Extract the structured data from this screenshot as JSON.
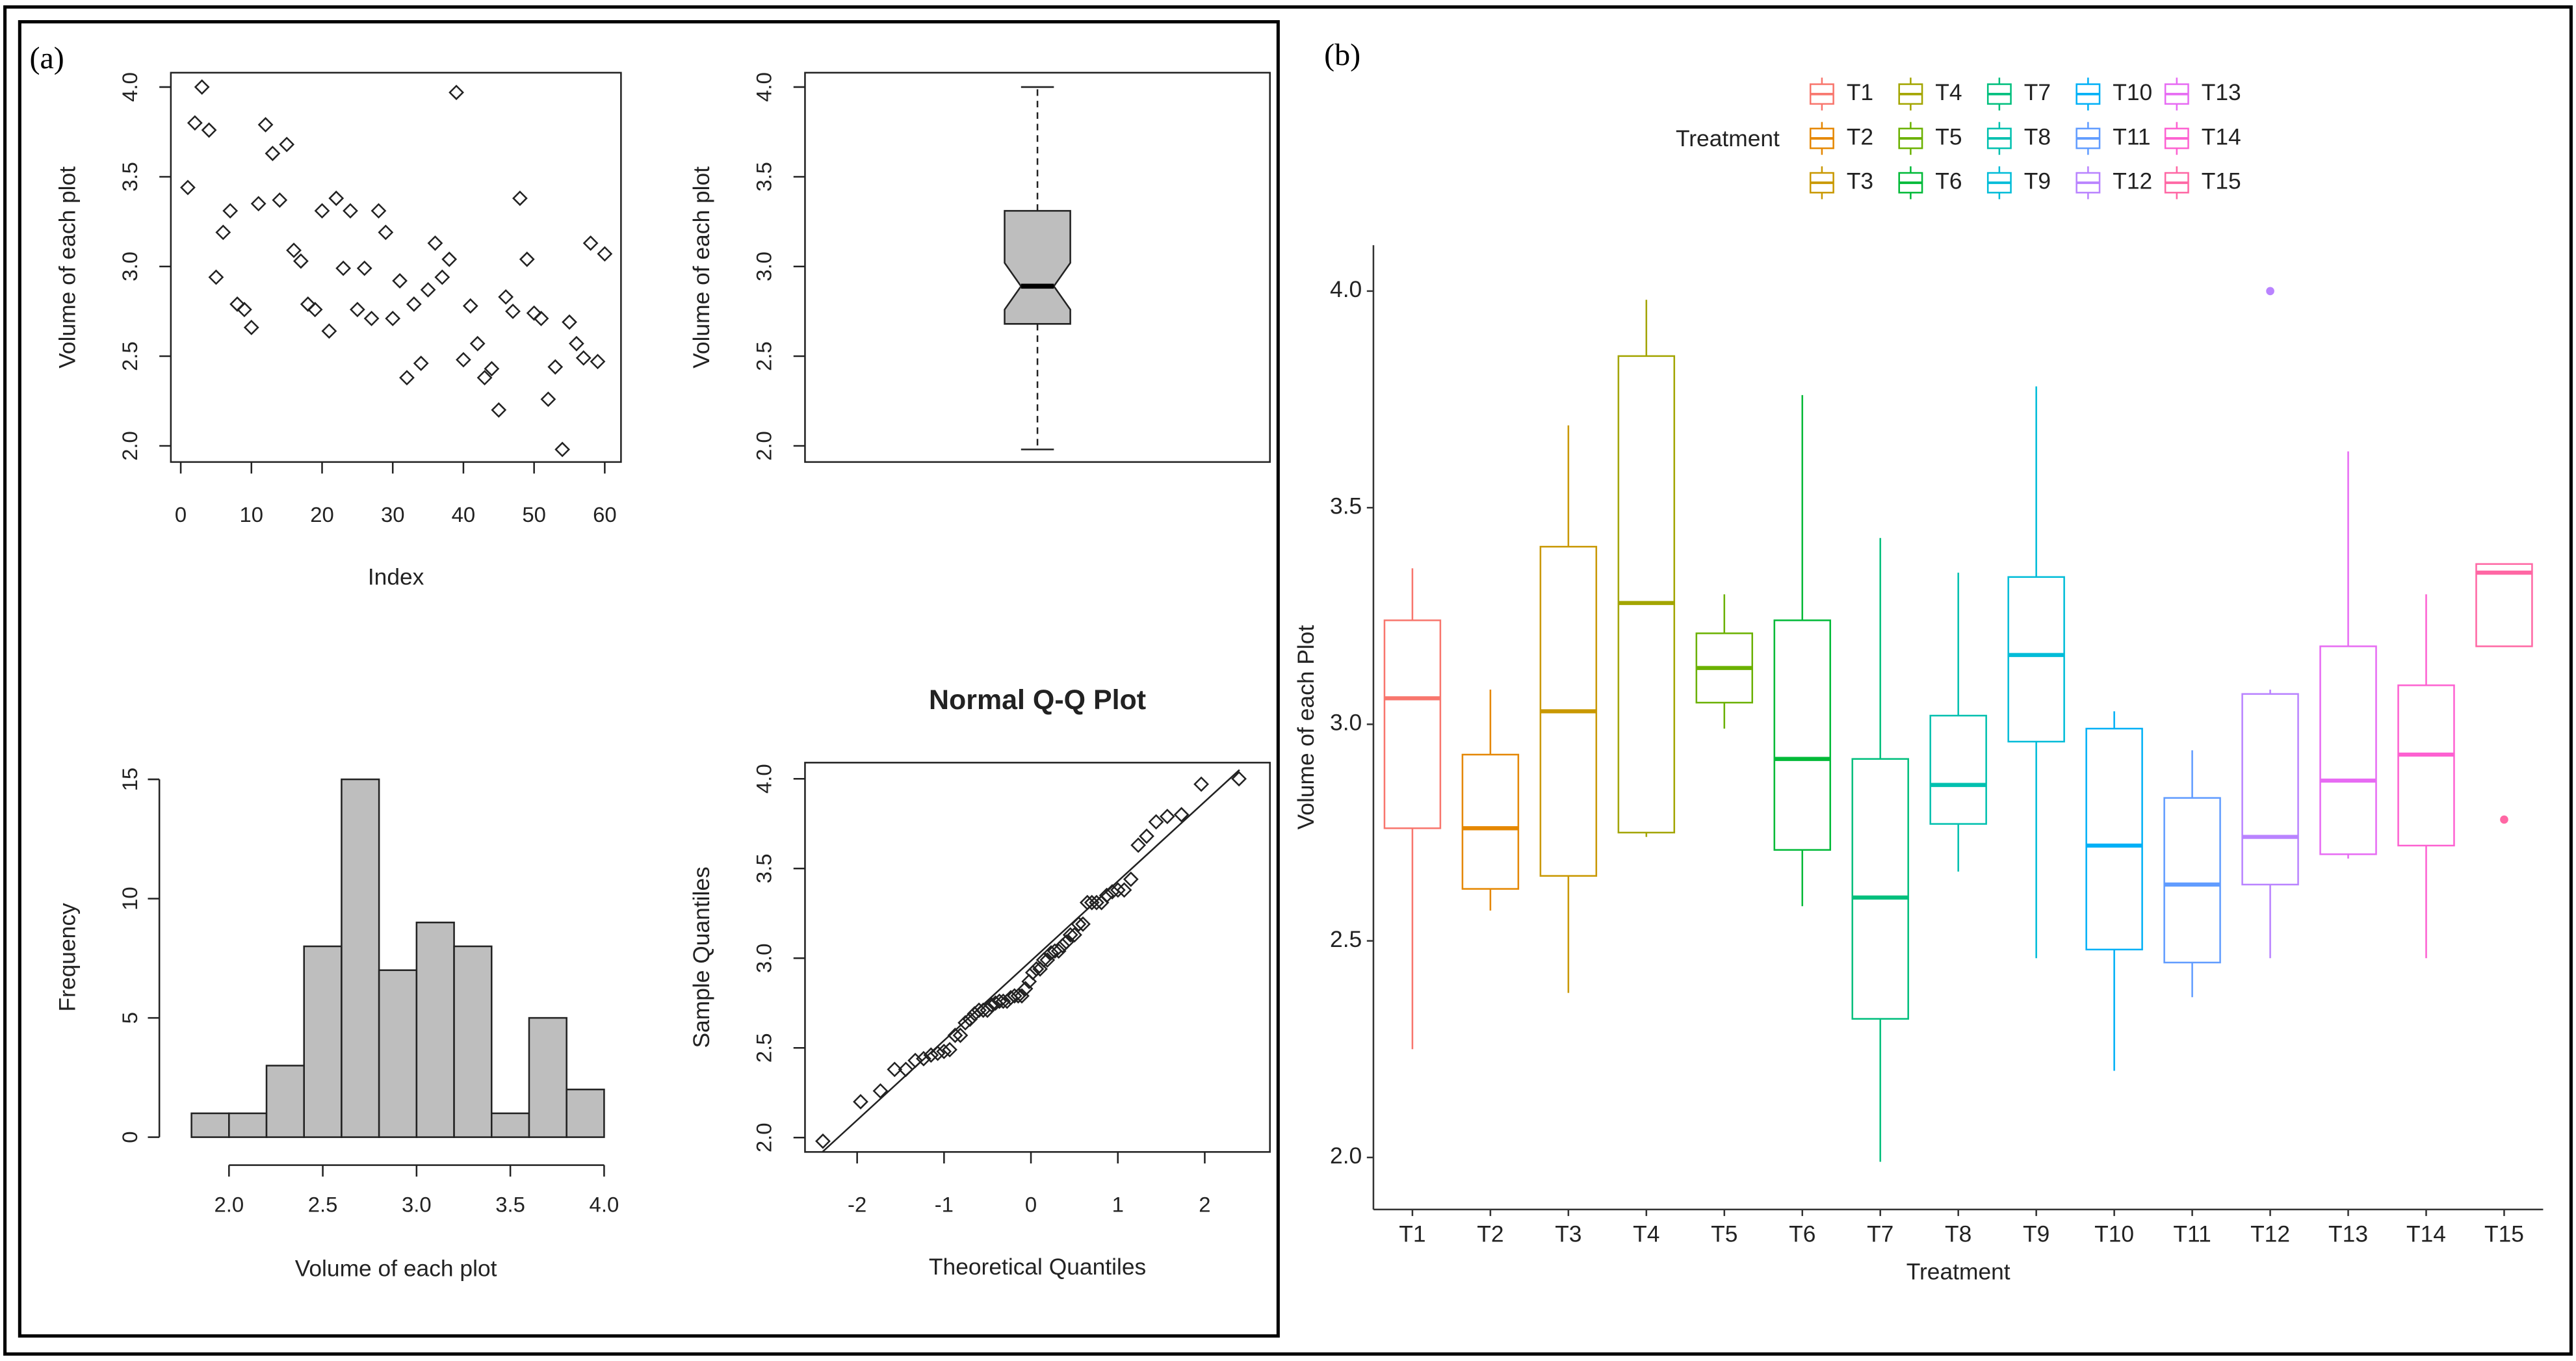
{
  "chart_data": [
    {
      "type": "scatter",
      "panel": "(a)",
      "x_label": "Index",
      "y_label": "Volume of each plot",
      "x": [
        1,
        2,
        3,
        4,
        5,
        6,
        7,
        8,
        9,
        10,
        11,
        12,
        13,
        14,
        15,
        16,
        17,
        18,
        19,
        20,
        21,
        22,
        23,
        24,
        25,
        26,
        27,
        28,
        29,
        30,
        31,
        32,
        33,
        34,
        35,
        36,
        37,
        38,
        39,
        40,
        41,
        42,
        43,
        44,
        45,
        46,
        47,
        48,
        49,
        50,
        51,
        52,
        53,
        54,
        55,
        56,
        57,
        58,
        59,
        60
      ],
      "y": [
        3.44,
        3.8,
        4.0,
        3.76,
        2.94,
        3.19,
        3.31,
        2.79,
        2.76,
        2.66,
        3.35,
        3.79,
        3.63,
        3.37,
        3.68,
        3.09,
        3.03,
        2.79,
        2.76,
        3.31,
        2.64,
        3.38,
        2.99,
        3.31,
        2.76,
        2.99,
        2.71,
        3.31,
        3.19,
        2.71,
        2.92,
        2.38,
        2.79,
        2.46,
        2.87,
        3.13,
        2.94,
        3.04,
        3.97,
        2.48,
        2.78,
        2.57,
        2.38,
        2.43,
        2.2,
        2.83,
        2.75,
        3.38,
        3.04,
        2.74,
        2.71,
        2.26,
        2.44,
        1.98,
        2.69,
        2.57,
        2.49,
        3.13,
        2.47,
        3.07
      ],
      "xlim": [
        -1.4,
        62.3
      ],
      "ylim": [
        1.91,
        4.08
      ],
      "xticks": [
        0,
        10,
        20,
        30,
        40,
        50,
        60
      ],
      "yticks": [
        {
          "value": 2,
          "label": "2.0"
        },
        {
          "value": 2.5,
          "label": "2.5"
        },
        {
          "value": 3,
          "label": "3.0"
        },
        {
          "value": 3.5,
          "label": "3.5"
        },
        {
          "value": 4,
          "label": "4.0"
        }
      ],
      "color": "#222222"
    },
    {
      "type": "box",
      "y_label": "Volume of each plot",
      "stats": {
        "low": 1.98,
        "q1": 2.68,
        "median": 2.89,
        "q3": 3.31,
        "high": 4.0,
        "notch": [
          2.76,
          3.02
        ]
      },
      "ylim": [
        1.91,
        4.08
      ],
      "yticks": [
        {
          "value": 2,
          "label": "2.0"
        },
        {
          "value": 2.5,
          "label": "2.5"
        },
        {
          "value": 3,
          "label": "3.0"
        },
        {
          "value": 3.5,
          "label": "3.5"
        },
        {
          "value": 4,
          "label": "4.0"
        }
      ],
      "color": "#bebebe"
    },
    {
      "type": "histogram",
      "x_label": "Volume of each plot",
      "y_label": "Frequency",
      "bins": [
        1.8,
        2.0,
        2.2,
        2.4,
        2.6,
        2.8,
        3.0,
        3.2,
        3.4,
        3.6,
        3.8,
        4.0
      ],
      "values": [
        1,
        1,
        3,
        8,
        15,
        7,
        9,
        8,
        1,
        5,
        2
      ],
      "xlim": [
        1.69,
        4.09
      ],
      "ylim": [
        -0.62,
        15.7
      ],
      "xticks": [
        {
          "value": 2,
          "label": "2.0"
        },
        {
          "value": 2.5,
          "label": "2.5"
        },
        {
          "value": 3,
          "label": "3.0"
        },
        {
          "value": 3.5,
          "label": "3.5"
        },
        {
          "value": 4,
          "label": "4.0"
        }
      ],
      "yticks": [
        0,
        5,
        10,
        15
      ],
      "color": "#bebebe"
    },
    {
      "type": "qq",
      "title": "Normal Q-Q Plot",
      "x_label": "Theoretical Quantiles",
      "y_label": "Sample Quantiles",
      "x": [
        -2.394,
        -1.96,
        -1.732,
        -1.569,
        -1.44,
        -1.331,
        -1.235,
        -1.15,
        -1.073,
        -1.001,
        -0.935,
        -0.872,
        -0.812,
        -0.755,
        -0.701,
        -0.649,
        -0.598,
        -0.549,
        -0.501,
        -0.454,
        -0.408,
        -0.363,
        -0.319,
        -0.275,
        -0.232,
        -0.189,
        -0.147,
        -0.105,
        -0.063,
        -0.021,
        0.021,
        0.063,
        0.105,
        0.147,
        0.189,
        0.232,
        0.275,
        0.319,
        0.363,
        0.408,
        0.454,
        0.501,
        0.549,
        0.598,
        0.649,
        0.701,
        0.755,
        0.812,
        0.872,
        0.935,
        1.001,
        1.073,
        1.15,
        1.235,
        1.331,
        1.44,
        1.569,
        1.732,
        1.96,
        2.394
      ],
      "y": [
        1.98,
        2.2,
        2.26,
        2.38,
        2.38,
        2.43,
        2.44,
        2.46,
        2.47,
        2.48,
        2.49,
        2.57,
        2.57,
        2.64,
        2.66,
        2.69,
        2.71,
        2.71,
        2.71,
        2.74,
        2.75,
        2.76,
        2.76,
        2.76,
        2.78,
        2.79,
        2.79,
        2.79,
        2.83,
        2.87,
        2.92,
        2.94,
        2.94,
        2.99,
        2.99,
        3.03,
        3.04,
        3.04,
        3.07,
        3.09,
        3.13,
        3.13,
        3.19,
        3.19,
        3.31,
        3.31,
        3.31,
        3.31,
        3.35,
        3.37,
        3.38,
        3.38,
        3.44,
        3.63,
        3.68,
        3.76,
        3.79,
        3.8,
        3.97,
        4.0
      ],
      "reference_line": {
        "x": [
          -2.4,
          2.4
        ],
        "y": [
          1.92,
          4.05
        ]
      },
      "xlim": [
        -2.6,
        2.75
      ],
      "ylim": [
        1.92,
        4.09
      ],
      "xticks": [
        -2,
        -1,
        0,
        1,
        2
      ],
      "yticks": [
        {
          "value": 2,
          "label": "2.0"
        },
        {
          "value": 2.5,
          "label": "2.5"
        },
        {
          "value": 3,
          "label": "3.0"
        },
        {
          "value": 3.5,
          "label": "3.5"
        },
        {
          "value": 4,
          "label": "4.0"
        }
      ],
      "color": "#222222"
    },
    {
      "type": "grouped_box",
      "panel": "(b)",
      "x_label": "Treatment",
      "y_label": "Volume of each Plot",
      "legend_title": "Treatment",
      "legend": "top",
      "categories": [
        "T1",
        "T2",
        "T3",
        "T4",
        "T5",
        "T6",
        "T7",
        "T8",
        "T9",
        "T10",
        "T11",
        "T12",
        "T13",
        "T14",
        "T15"
      ],
      "series": [
        {
          "name": "T1",
          "color": "#F8766D",
          "low": 2.25,
          "q1": 2.76,
          "median": 3.06,
          "q3": 3.24,
          "high": 3.36
        },
        {
          "name": "T2",
          "color": "#E58700",
          "low": 2.57,
          "q1": 2.62,
          "median": 2.76,
          "q3": 2.93,
          "high": 3.08
        },
        {
          "name": "T3",
          "color": "#C99800",
          "low": 2.38,
          "q1": 2.65,
          "median": 3.03,
          "q3": 3.41,
          "high": 3.69
        },
        {
          "name": "T4",
          "color": "#A3A500",
          "low": 2.74,
          "q1": 2.75,
          "median": 3.28,
          "q3": 3.85,
          "high": 3.98
        },
        {
          "name": "T5",
          "color": "#6BB100",
          "low": 2.99,
          "q1": 3.05,
          "median": 3.13,
          "q3": 3.21,
          "high": 3.3
        },
        {
          "name": "T6",
          "color": "#00BA38",
          "low": 2.58,
          "q1": 2.71,
          "median": 2.92,
          "q3": 3.24,
          "high": 3.76
        },
        {
          "name": "T7",
          "color": "#00BF7D",
          "low": 1.99,
          "q1": 2.32,
          "median": 2.6,
          "q3": 2.92,
          "high": 3.43
        },
        {
          "name": "T8",
          "color": "#00C0AF",
          "low": 2.66,
          "q1": 2.77,
          "median": 2.86,
          "q3": 3.02,
          "high": 3.35
        },
        {
          "name": "T9",
          "color": "#00BCD8",
          "low": 2.46,
          "q1": 2.96,
          "median": 3.16,
          "q3": 3.34,
          "high": 3.78
        },
        {
          "name": "T10",
          "color": "#00B0F6",
          "low": 2.2,
          "q1": 2.48,
          "median": 2.72,
          "q3": 2.99,
          "high": 3.03
        },
        {
          "name": "T11",
          "color": "#619CFF",
          "low": 2.37,
          "q1": 2.45,
          "median": 2.63,
          "q3": 2.83,
          "high": 2.94
        },
        {
          "name": "T12",
          "color": "#B983FF",
          "low": 2.46,
          "q1": 2.63,
          "median": 2.74,
          "q3": 3.07,
          "high": 3.08,
          "outliers": [
            4.0
          ]
        },
        {
          "name": "T13",
          "color": "#E76BF3",
          "low": 2.69,
          "q1": 2.7,
          "median": 2.87,
          "q3": 3.18,
          "high": 3.63
        },
        {
          "name": "T14",
          "color": "#FD61D1",
          "low": 2.46,
          "q1": 2.72,
          "median": 2.93,
          "q3": 3.09,
          "high": 3.3
        },
        {
          "name": "T15",
          "color": "#FF67A4",
          "low": 3.18,
          "q1": 3.18,
          "median": 3.35,
          "q3": 3.37,
          "high": 3.37,
          "outliers": [
            2.78
          ]
        }
      ],
      "ylim": [
        1.88,
        4.106
      ],
      "yticks": [
        {
          "value": 2,
          "label": "2.0"
        },
        {
          "value": 2.5,
          "label": "2.5"
        },
        {
          "value": 3,
          "label": "3.0"
        },
        {
          "value": 3.5,
          "label": "3.5"
        },
        {
          "value": 4,
          "label": "4.0"
        }
      ]
    }
  ]
}
